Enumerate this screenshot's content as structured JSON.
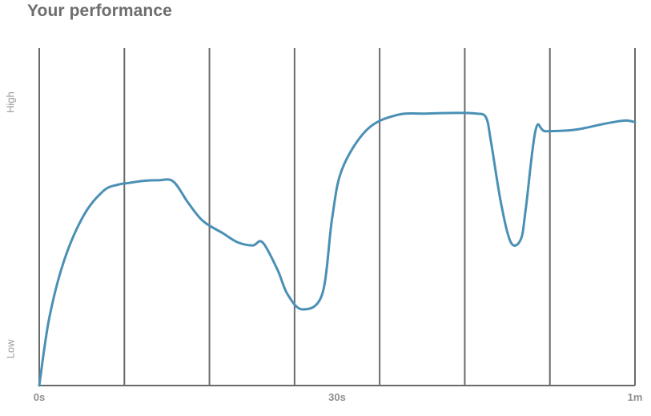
{
  "header": {
    "title": "Your performance"
  },
  "chart_data": {
    "type": "line",
    "title": "Your performance",
    "xlabel": "",
    "ylabel": "",
    "x_ticks": [
      "0s",
      "30s",
      "1m"
    ],
    "y_ticks": [
      "Low",
      "High"
    ],
    "xlim": [
      0,
      60
    ],
    "ylim": [
      0,
      1
    ],
    "grid": "vertical",
    "series": [
      {
        "color": "#4a90b5",
        "x": [
          0,
          1,
          2.5,
          4.5,
          6.5,
          8,
          9,
          10.5,
          12,
          13.5,
          15,
          16.5,
          18.5,
          20,
          21.5,
          22.5,
          24,
          25,
          26.5,
          28.5,
          29.5,
          30.5,
          33,
          36,
          39,
          42,
          44,
          45,
          45.5,
          46.5,
          47.5,
          48.5,
          49,
          50,
          51,
          54,
          57,
          59,
          60
        ],
        "y": [
          0,
          0.22,
          0.41,
          0.56,
          0.64,
          0.66,
          0.665,
          0.672,
          0.674,
          0.67,
          0.6,
          0.54,
          0.5,
          0.47,
          0.46,
          0.47,
          0.38,
          0.3,
          0.25,
          0.3,
          0.55,
          0.71,
          0.84,
          0.888,
          0.893,
          0.895,
          0.893,
          0.88,
          0.8,
          0.6,
          0.47,
          0.48,
          0.58,
          0.84,
          0.835,
          0.84,
          0.86,
          0.87,
          0.865
        ]
      }
    ]
  }
}
